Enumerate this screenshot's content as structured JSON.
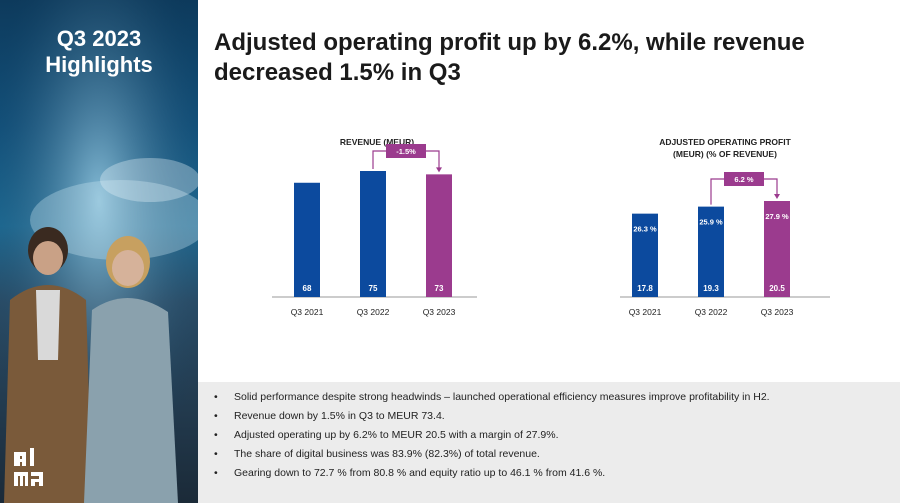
{
  "sidebar": {
    "title_line1": "Q3 2023",
    "title_line2": "Highlights",
    "logo_text": "alma"
  },
  "heading": {
    "line1": "Adjusted operating profit up by 6.2%, while revenue",
    "line2": "decreased 1.5% in Q3"
  },
  "colors": {
    "blue": "#0c4a9e",
    "purple": "#9b3b8e"
  },
  "chart_data": [
    {
      "type": "bar",
      "title": "REVENUE (MEUR)",
      "categories": [
        "Q3 2021",
        "Q3 2022",
        "Q3 2023"
      ],
      "values": [
        68,
        75,
        73
      ],
      "value_labels": [
        "68",
        "75",
        "73"
      ],
      "change_label": "-1.5%",
      "ylim": [
        0,
        75
      ]
    },
    {
      "type": "bar",
      "title_line1": "ADJUSTED OPERATING PROFIT",
      "title_line2": "(MEUR) (% OF REVENUE)",
      "categories": [
        "Q3 2021",
        "Q3 2022",
        "Q3 2023"
      ],
      "values": [
        17.8,
        19.3,
        20.5
      ],
      "value_labels": [
        "17.8",
        "19.3",
        "20.5"
      ],
      "margin_labels": [
        "26.3 %",
        "25.9 %",
        "27.9 %"
      ],
      "change_label": "6.2 %",
      "ylim": [
        0,
        20.5
      ]
    }
  ],
  "bullets": [
    "Solid performance despite strong headwinds – launched operational efficiency measures improve profitability in H2.",
    "Revenue down by 1.5% in Q3 to MEUR 73.4.",
    "Adjusted operating up by 6.2% to MEUR 20.5 with a margin of 27.9%.",
    "The share of digital business was 83.9% (82.3%) of total revenue.",
    "Gearing down to 72.7 % from 80.8 % and equity ratio up to 46.1 % from 41.6 %."
  ]
}
